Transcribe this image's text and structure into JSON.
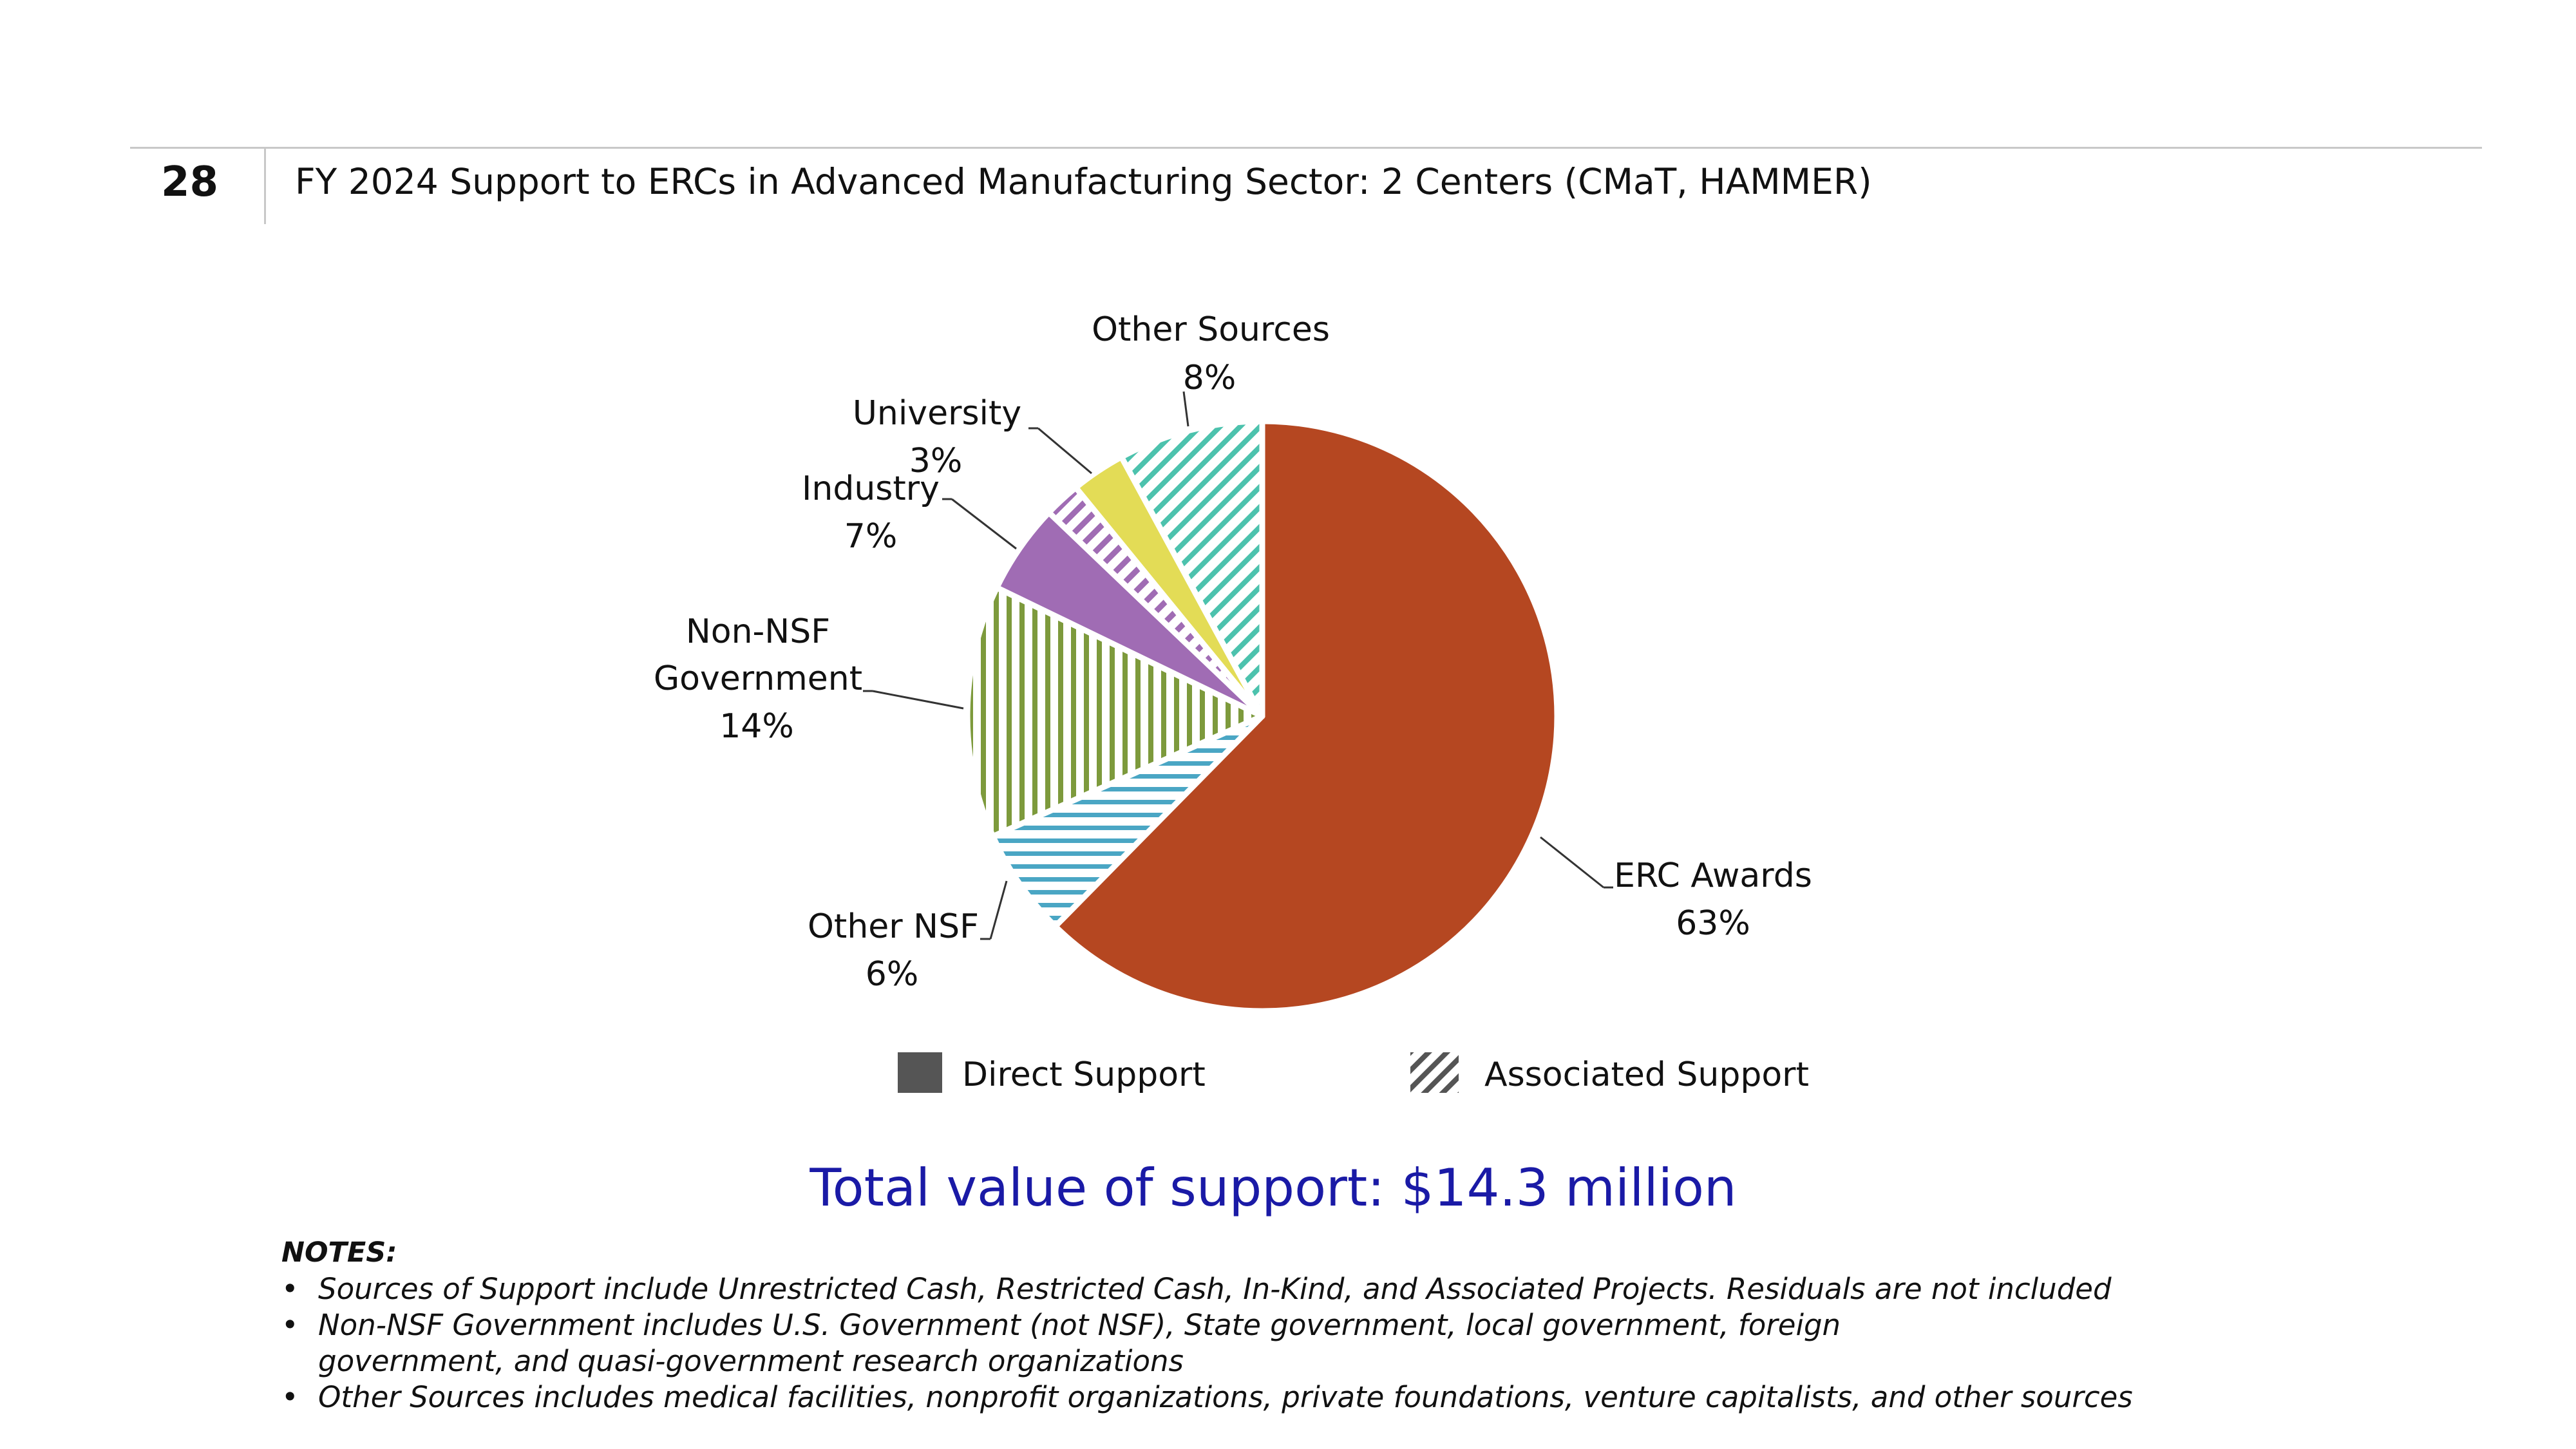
{
  "header": {
    "slide_number": "28",
    "title": "FY 2024 Support to ERCs in Advanced Manufacturing Sector: 2 Centers (CMaT, HAMMER)"
  },
  "chart_data": {
    "type": "pie",
    "title": "",
    "start_angle_deg": 0,
    "direction": "clockwise",
    "slices": [
      {
        "label": "ERC Awards",
        "label_lines": [
          "ERC Awards"
        ],
        "value": 63,
        "value_label": "63%",
        "color": "#b54721",
        "pattern": "solid",
        "support_type": "Direct Support"
      },
      {
        "label": "Other NSF",
        "label_lines": [
          "Other NSF"
        ],
        "value": 6,
        "value_label": "6%",
        "color": "#4aa6c4",
        "pattern": "horizontal",
        "support_type": "Associated Support"
      },
      {
        "label": "Non-NSF Government",
        "label_lines": [
          "Non-NSF",
          "Government"
        ],
        "value": 14,
        "value_label": "14%",
        "color": "#7d9a3c",
        "pattern": "vertical",
        "support_type": "Associated Support"
      },
      {
        "label": "Industry",
        "label_lines": [
          "Industry"
        ],
        "value": 5,
        "color": "#a06cb4",
        "pattern": "solid",
        "support_type": "Direct Support"
      },
      {
        "label": "Industry",
        "label_lines": [],
        "value": 2,
        "color": "#a06cb4",
        "pattern": "diagonal",
        "support_type": "Associated Support"
      },
      {
        "label": "University",
        "label_lines": [
          "University"
        ],
        "value": 3,
        "value_label": "3%",
        "color": "#e3dc56",
        "pattern": "solid",
        "support_type": "Direct Support"
      },
      {
        "label": "Other Sources",
        "label_lines": [
          "Other Sources"
        ],
        "value": 8,
        "value_label": "8%",
        "color": "#4cc2ad",
        "pattern": "diagonal",
        "support_type": "Associated Support"
      }
    ],
    "industry_total_label": "7%",
    "legend": {
      "placement": "bottom",
      "items": [
        {
          "label": "Direct Support",
          "color": "#555555",
          "pattern": "solid"
        },
        {
          "label": "Associated Support",
          "color": "#555555",
          "pattern": "diagonal"
        }
      ]
    }
  },
  "total": {
    "text": "Total value of support: $14.3 million",
    "color": "#1a1aa6"
  },
  "notes": {
    "heading": "NOTES:",
    "items": [
      "Sources of Support include Unrestricted Cash, Restricted Cash, In-Kind, and Associated Projects. Residuals are not included",
      "Non-NSF Government includes U.S. Government (not NSF), State government, local government, foreign government, and quasi-government research organizations",
      "Other Sources includes medical facilities, nonprofit organizations, private foundations, venture capitalists, and other sources"
    ]
  }
}
